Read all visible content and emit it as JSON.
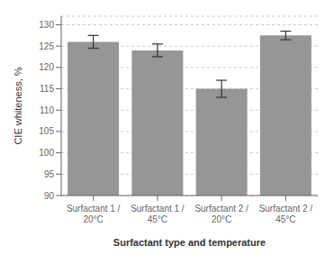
{
  "chart_data": {
    "type": "bar",
    "categories": [
      "Surfactant 1 /\n20°C",
      "Surfactant 1 /\n45°C",
      "Surfactant 2 /\n20°C",
      "Surfactant 2 /\n45°C"
    ],
    "values": [
      126.0,
      124.0,
      115.0,
      127.5
    ],
    "errors": [
      1.5,
      1.5,
      2.0,
      1.0
    ],
    "color": "#969696",
    "xlabel": "Surfactant type and temperature",
    "ylabel": "CIE whiteness, %",
    "ylim": [
      90,
      132
    ],
    "yticks": [
      90,
      95,
      100,
      105,
      110,
      115,
      120,
      125,
      130
    ],
    "grid": true
  }
}
